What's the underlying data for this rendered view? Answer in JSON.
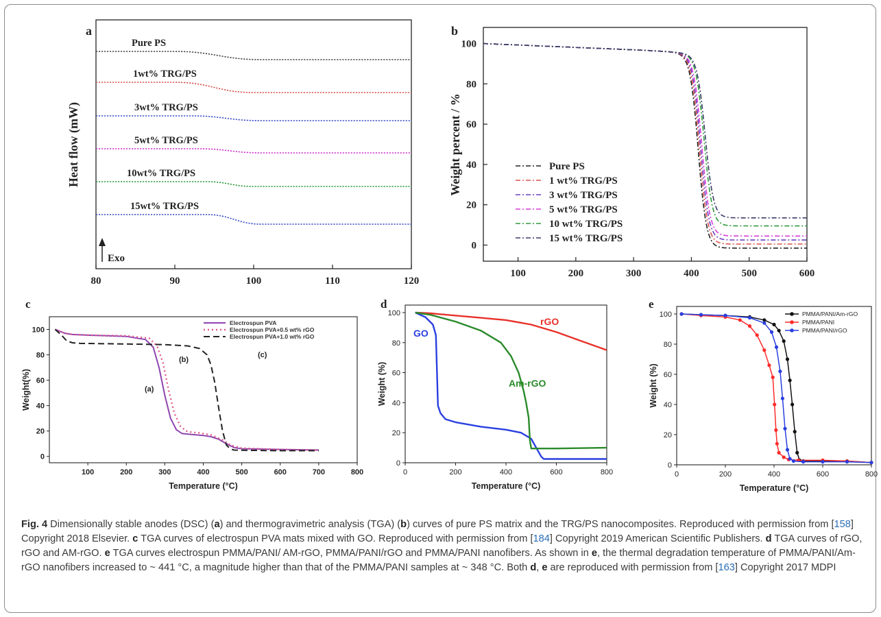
{
  "chart_data": [
    {
      "panel": "a",
      "type": "line",
      "xlabel": "",
      "ylabel": "Heat flow (mW)",
      "xlim": [
        80,
        120
      ],
      "xticks": [
        80,
        90,
        100,
        110,
        120
      ],
      "annotation": "Exo",
      "series": [
        {
          "name": "Pure PS",
          "color": "#444444",
          "pre": 0,
          "step": [
            90,
            101
          ],
          "drop": 0.35
        },
        {
          "name": "1wt% TRG/PS",
          "color": "#d9534f",
          "pre": 0,
          "step": [
            90,
            100
          ],
          "drop": 0.37
        },
        {
          "name": "3wt% TRG/PS",
          "color": "#3a4fc4",
          "pre": 0,
          "step": [
            92,
            101
          ],
          "drop": 0.18
        },
        {
          "name": "5wt% TRG/PS",
          "color": "#cc33cc",
          "pre": 0,
          "step": [
            93,
            101
          ],
          "drop": 0.18
        },
        {
          "name": "10wt% TRG/PS",
          "color": "#2e9a3a",
          "pre": 0,
          "step": [
            94,
            100
          ],
          "drop": 0.18
        },
        {
          "name": "15wt% TRG/PS",
          "color": "#3a4fc4",
          "pre": 0,
          "step": [
            94,
            101
          ],
          "drop": 0.35
        }
      ]
    },
    {
      "panel": "b",
      "type": "line",
      "xlabel": "",
      "ylabel": "Weight percent / %",
      "xlim": [
        40,
        600
      ],
      "ylim": [
        -8,
        108
      ],
      "xticks": [
        100,
        200,
        300,
        400,
        500,
        600
      ],
      "yticks": [
        0,
        20,
        40,
        60,
        80,
        100
      ],
      "legend": "lower-left",
      "series": [
        {
          "name": "Pure PS",
          "color": "#222222",
          "mid": 412,
          "residue": -1.5
        },
        {
          "name": "1 wt% TRG/PS",
          "color": "#d9534f",
          "mid": 414,
          "residue": 0.5
        },
        {
          "name": "3 wt% TRG/PS",
          "color": "#6a3fc4",
          "mid": 416,
          "residue": 2.5
        },
        {
          "name": "5 wt% TRG/PS",
          "color": "#d63ad6",
          "mid": 418,
          "residue": 4.5
        },
        {
          "name": "10 wt% TRG/PS",
          "color": "#2e9a3a",
          "mid": 422,
          "residue": 9.5
        },
        {
          "name": "15 wt% TRG/PS",
          "color": "#3a3a6a",
          "mid": 424,
          "residue": 13.5
        }
      ]
    },
    {
      "panel": "c",
      "type": "line",
      "xlabel": "Temperature (°C)",
      "ylabel": "Weight(%)",
      "xlim": [
        0,
        800
      ],
      "ylim": [
        -5,
        110
      ],
      "xticks": [
        100,
        200,
        300,
        400,
        500,
        600,
        700,
        800
      ],
      "yticks": [
        0,
        20,
        40,
        60,
        80,
        100
      ],
      "legend": "top-right",
      "annotations": [
        "(a)",
        "(b)",
        "(c)"
      ],
      "series": [
        {
          "name": "Electrospun PVA",
          "color": "#8e44ad",
          "x": [
            15,
            40,
            60,
            100,
            200,
            250,
            270,
            285,
            300,
            315,
            330,
            345,
            360,
            380,
            400,
            420,
            440,
            460,
            480,
            500,
            600,
            700
          ],
          "y": [
            100,
            97,
            96,
            95.5,
            94.5,
            92,
            86,
            70,
            48,
            30,
            21,
            18,
            17.5,
            17,
            16.5,
            15.5,
            13.5,
            10,
            7,
            6,
            5.5,
            5
          ]
        },
        {
          "name": "Electrospun PVA+0.5 wt% rGO",
          "color": "#e05a8a",
          "x": [
            15,
            40,
            60,
            100,
            200,
            260,
            280,
            295,
            310,
            325,
            340,
            355,
            370,
            390,
            420,
            450,
            470,
            500,
            600,
            700
          ],
          "y": [
            100,
            97,
            96,
            95.5,
            95,
            93,
            87,
            74,
            52,
            34,
            24,
            20,
            19,
            18.5,
            17,
            13,
            9,
            6.5,
            5.5,
            5
          ]
        },
        {
          "name": "Electrospun PVA+1.0 wt% rGO",
          "color": "#222222",
          "x": [
            15,
            30,
            45,
            60,
            80,
            200,
            300,
            360,
            390,
            410,
            420,
            430,
            440,
            450,
            460,
            470,
            480,
            500,
            600,
            700
          ],
          "y": [
            100,
            96,
            91,
            89.5,
            89,
            88.5,
            88,
            87,
            85,
            80,
            72,
            58,
            38,
            20,
            9,
            6,
            5,
            4.8,
            4.5,
            4.5
          ]
        }
      ]
    },
    {
      "panel": "d",
      "type": "line",
      "xlabel": "Temperature (°C)",
      "ylabel": "Weight (%)",
      "xlim": [
        0,
        800
      ],
      "ylim": [
        0,
        105
      ],
      "xticks": [
        0,
        200,
        400,
        600,
        800
      ],
      "yticks": [
        0,
        20,
        40,
        60,
        80,
        100
      ],
      "series": [
        {
          "name": "rGO",
          "color": "#e8312a",
          "x": [
            40,
            100,
            200,
            300,
            400,
            500,
            600,
            700,
            800
          ],
          "y": [
            100,
            99.5,
            98,
            96.5,
            95,
            92,
            87,
            81,
            75
          ]
        },
        {
          "name": "GO",
          "color": "#2a3fe0",
          "x": [
            40,
            80,
            110,
            122,
            130,
            140,
            160,
            200,
            300,
            400,
            460,
            500,
            520,
            540,
            550,
            600,
            800
          ],
          "y": [
            100,
            97,
            92,
            85,
            38,
            33,
            29,
            27,
            24,
            22,
            20,
            16,
            10,
            4,
            2.5,
            2.5,
            2.5
          ]
        },
        {
          "name": "Am-rGO",
          "color": "#2a8a2a",
          "x": [
            40,
            100,
            200,
            300,
            380,
            420,
            450,
            470,
            480,
            490,
            495,
            500,
            520,
            600,
            800
          ],
          "y": [
            100,
            98.5,
            94,
            88,
            80,
            71,
            60,
            48,
            40,
            30,
            15,
            9.5,
            9.5,
            9.5,
            10
          ]
        }
      ]
    },
    {
      "panel": "e",
      "type": "line",
      "xlabel": "Temperature (°C)",
      "ylabel": "Weight (%)",
      "xlim": [
        0,
        800
      ],
      "ylim": [
        0,
        105
      ],
      "xticks": [
        0,
        200,
        400,
        600,
        800
      ],
      "yticks": [
        0,
        20,
        40,
        60,
        80,
        100
      ],
      "legend": "top-right",
      "series": [
        {
          "name": "PMMA/PANI/Am-rGO",
          "color": "#111111",
          "x": [
            20,
            100,
            200,
            300,
            360,
            400,
            420,
            440,
            455,
            465,
            475,
            485,
            495,
            505,
            520,
            600,
            700,
            800
          ],
          "y": [
            100,
            99.5,
            99,
            98,
            96,
            93,
            89,
            82,
            70,
            56,
            40,
            22,
            8,
            3,
            2.5,
            2.5,
            2.5,
            1.5
          ]
        },
        {
          "name": "PMMA/PANI",
          "color": "#ff2a2a",
          "x": [
            20,
            100,
            200,
            260,
            300,
            330,
            360,
            380,
            395,
            402,
            408,
            412,
            420,
            440,
            460,
            500,
            600,
            700,
            800
          ],
          "y": [
            100,
            99,
            98,
            96,
            92,
            86,
            76,
            66,
            58,
            40,
            23,
            14,
            8,
            5,
            3.5,
            3,
            3,
            2.5,
            1.5
          ]
        },
        {
          "name": "PMMA/PANI/rGO",
          "color": "#2a3fe0",
          "x": [
            20,
            100,
            200,
            300,
            360,
            390,
            410,
            425,
            435,
            445,
            455,
            465,
            480,
            520,
            600,
            700,
            800
          ],
          "y": [
            100,
            99.5,
            99,
            97.5,
            94,
            88,
            78,
            62,
            44,
            24,
            10,
            4,
            2.5,
            2,
            2,
            2,
            1.5
          ]
        }
      ]
    }
  ],
  "labels": {
    "a": {
      "tag": "a",
      "exo": "Exo"
    },
    "b": {
      "tag": "b"
    },
    "c": {
      "tag": "c"
    },
    "d": {
      "tag": "d"
    },
    "e": {
      "tag": "e"
    }
  },
  "caption": {
    "fig": "Fig. 4",
    "t1": "  Dimensionally stable anodes (DSC) (",
    "b1": "a",
    "t2": ") and thermogravimetric analysis (TGA) (",
    "b2": "b",
    "t3": ") curves of pure PS matrix and the TRG/PS nanocomposites. Reproduced with permission from [",
    "r1": "158",
    "t4": "] Copyright 2018 Elsevier. ",
    "b3": "c",
    "t5": " TGA curves of electrospun PVA mats mixed with GO. Reproduced with permission from [",
    "r2": "184",
    "t6": "] Copyright 2019 American Scientific Publishers. ",
    "b4": "d",
    "t7": " TGA curves of rGO, rGO and AM-rGO. ",
    "b5": "e",
    "t8": " TGA curves electrospun PMMA/PANI/ AM-rGO, PMMA/PANI/rGO and PMMA/PANI nanofibers. As shown in ",
    "b6": "e",
    "t9": ", the thermal degradation temperature of PMMA/PANI/Am-rGO nanofibers increased to ~ 441 °C, a magnitude higher than that of the PMMA/PANI samples at ~ 348 °C. Both ",
    "b7": "d",
    "t10": ", ",
    "b8": "e",
    "t11": " are reproduced with permission from [",
    "r3": "163",
    "t12": "] Copyright 2017 MDPI"
  }
}
